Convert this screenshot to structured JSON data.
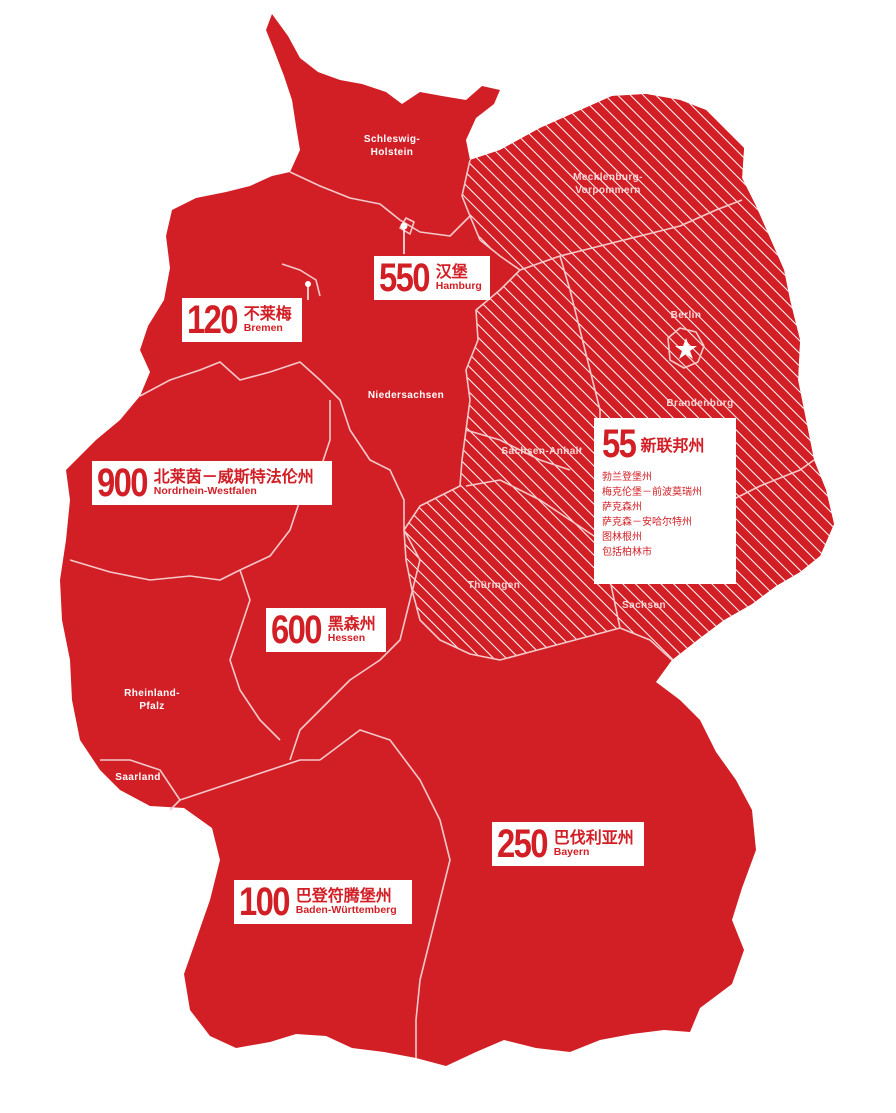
{
  "colors": {
    "accent": "#d21f26",
    "background": "#ffffff",
    "border": "#f3c9ca"
  },
  "states": [
    {
      "id": "schleswig-holstein",
      "name": "Schleswig-\nHolstein"
    },
    {
      "id": "mecklenburg-vorpommern",
      "name": "Mecklenburg-\nVorpommern"
    },
    {
      "id": "berlin",
      "name": "Berlin"
    },
    {
      "id": "brandenburg",
      "name": "Brandenburg"
    },
    {
      "id": "niedersachsen",
      "name": "Niedersachsen"
    },
    {
      "id": "sachsen-anhalt",
      "name": "Sachsen-Anhalt"
    },
    {
      "id": "thueringen",
      "name": "Thüringen"
    },
    {
      "id": "sachsen",
      "name": "Sachsen"
    },
    {
      "id": "rheinland-pfalz",
      "name": "Rheinland-\nPfalz"
    },
    {
      "id": "saarland",
      "name": "Saarland"
    }
  ],
  "labels": {
    "hamburg": {
      "value": "550",
      "cn": "汉堡",
      "en": "Hamburg"
    },
    "bremen": {
      "value": "120",
      "cn": "不莱梅",
      "en": "Bremen"
    },
    "nrw": {
      "value": "900",
      "cn": "北莱茵－威斯特法伦州",
      "en": "Nordrhein-Westfalen"
    },
    "hessen": {
      "value": "600",
      "cn": "黑森州",
      "en": "Hessen"
    },
    "bayern": {
      "value": "250",
      "cn": "巴伐利亚州",
      "en": "Bayern"
    },
    "bw": {
      "value": "100",
      "cn": "巴登符腾堡州",
      "en": "Baden-Württemberg"
    },
    "east": {
      "value": "55",
      "cn": "新联邦州",
      "items": [
        "勃兰登堡州",
        "梅克伦堡－前波莫瑞州",
        "萨克森州",
        "萨克森－安哈尔特州",
        "图林根州",
        "包括柏林市"
      ]
    }
  }
}
